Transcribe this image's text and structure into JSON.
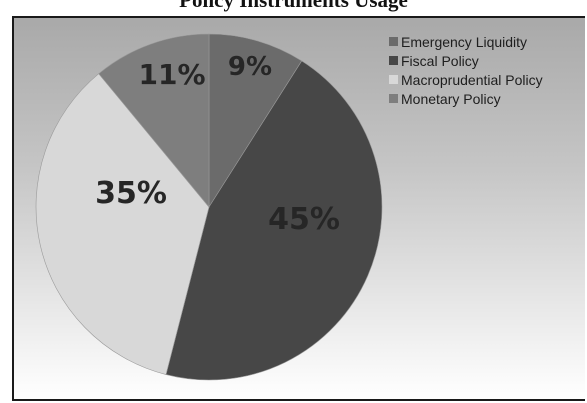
{
  "chart_data": {
    "type": "pie",
    "title": "Policy Instruments Usage",
    "categories": [
      "Emergency Liquidity",
      "Fiscal Policy",
      "Macroprudential Policy",
      "Monetary Policy"
    ],
    "values": [
      9,
      45,
      35,
      11
    ],
    "data_labels": [
      "9%",
      "45%",
      "35%",
      "11%"
    ],
    "colors": [
      "#6b6b6b",
      "#474747",
      "#d8d8d8",
      "#7e7e7e"
    ],
    "legend_placement": "top-right",
    "start_angle": "12 o'clock, clockwise"
  }
}
